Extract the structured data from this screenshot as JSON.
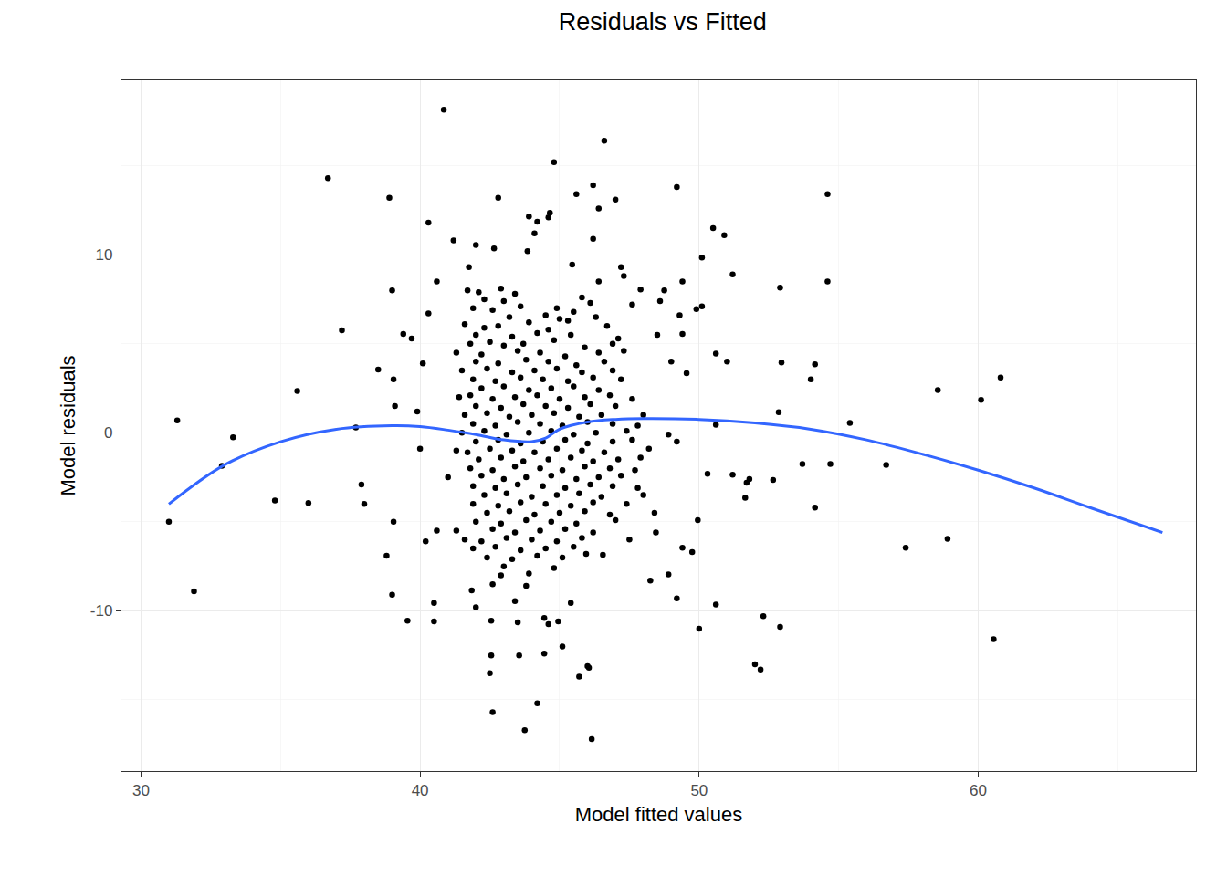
{
  "chart_data": {
    "type": "scatter",
    "title": "Residuals vs Fitted",
    "x_label": "Model fitted values",
    "y_label": "Model residuals",
    "xlim": [
      29.3,
      67.8
    ],
    "ylim": [
      -19.0,
      19.8
    ],
    "xticks": [
      30,
      40,
      50,
      60
    ],
    "yticks": [
      -10,
      0,
      10
    ],
    "grid": true,
    "series": [
      {
        "type": "scatter",
        "marker": "circle",
        "color": "#000000",
        "x": [
          40.85,
          46.6,
          44.8,
          36.7,
          38.9,
          42.8,
          45.6,
          46.2,
          47.0,
          49.2,
          54.6,
          46.4,
          40.3,
          41.2,
          50.5,
          50.9,
          50.1,
          51.2,
          54.6,
          52.9,
          37.2,
          39.0,
          40.6,
          40.3,
          35.6,
          31.3,
          33.3,
          32.9,
          31.0,
          31.9,
          34.8,
          36.0,
          37.7,
          37.9,
          38.0,
          38.5,
          39.05,
          39.1,
          38.8,
          39.05,
          39.0,
          39.55,
          40.5,
          40.5,
          39.4,
          39.7,
          39.9,
          40.1,
          40.0,
          40.2,
          40.6,
          58.55,
          60.1,
          60.8,
          60.55,
          58.9,
          57.4,
          56.7,
          55.4,
          54.7,
          53.7,
          54.15,
          54.0,
          54.15,
          52.85,
          52.95,
          52.65,
          52.9,
          52.3,
          52.0,
          52.2,
          50.6,
          50.0,
          51.7,
          51.65,
          51.8,
          51.2,
          50.3,
          50.6,
          50.6,
          51.0,
          49.95,
          49.75,
          49.4,
          49.2,
          48.9,
          48.25,
          48.45,
          49.55,
          49.0,
          49.9,
          50.1,
          49.4,
          48.6,
          48.75,
          48.5,
          49.3,
          49.4,
          46.2,
          44.6,
          43.9,
          44.2,
          44.65,
          42.0,
          42.65,
          41.75,
          44.1,
          43.85,
          47.2,
          47.3,
          46.4,
          47.9,
          45.45,
          42.6,
          43.75,
          44.2,
          46.15,
          42.5,
          42.55,
          43.55,
          44.45,
          45.1,
          46.0,
          45.7,
          46.05,
          42.55,
          43.5,
          43.4,
          43.8,
          42.6,
          41.85,
          42.0,
          44.45,
          44.6,
          45.4,
          44.95,
          45.95,
          46.55,
          41.7,
          42.1,
          42.9,
          43.4,
          42.3,
          43.0,
          45.8,
          46.1,
          41.9,
          42.6,
          43.6,
          44.9,
          45.5,
          47.6,
          43.2,
          44.5,
          45.0,
          45.3,
          46.3,
          41.6,
          42.3,
          42.8,
          43.9,
          44.6,
          46.7,
          42.0,
          43.3,
          44.2,
          45.4,
          47.1,
          41.8,
          42.5,
          43.0,
          43.7,
          44.8,
          45.9,
          46.9,
          41.3,
          42.2,
          43.5,
          44.3,
          45.2,
          46.4,
          47.3,
          42.0,
          42.8,
          43.8,
          44.6,
          45.6,
          46.6,
          41.5,
          42.4,
          43.3,
          44.1,
          44.9,
          45.8,
          46.9,
          41.9,
          42.7,
          43.6,
          44.4,
          45.3,
          46.2,
          47.2,
          42.2,
          43.0,
          43.9,
          44.7,
          45.5,
          46.4,
          41.4,
          41.8,
          42.6,
          43.4,
          44.2,
          45.0,
          45.9,
          46.8,
          47.6,
          42.0,
          42.9,
          43.7,
          44.5,
          45.3,
          46.1,
          47.0,
          41.6,
          42.4,
          43.2,
          44.0,
          44.8,
          45.7,
          46.5,
          48.0,
          41.9,
          42.7,
          43.5,
          44.3,
          45.1,
          46.0,
          46.9,
          47.8,
          41.5,
          42.3,
          43.1,
          43.9,
          44.7,
          45.5,
          46.3,
          47.4,
          48.9,
          42.0,
          42.8,
          43.6,
          44.4,
          45.2,
          46.0,
          46.9,
          47.6,
          49.2,
          41.3,
          41.7,
          42.5,
          43.3,
          44.1,
          44.9,
          45.8,
          46.6,
          48.2,
          42.1,
          42.9,
          43.7,
          44.6,
          45.4,
          46.2,
          47.1,
          47.9,
          41.8,
          42.6,
          43.4,
          44.3,
          45.1,
          45.9,
          46.8,
          47.7,
          41.0,
          42.2,
          43.0,
          43.8,
          44.7,
          45.6,
          46.4,
          47.2,
          41.9,
          42.7,
          43.5,
          44.4,
          45.2,
          46.1,
          46.9,
          47.8,
          42.3,
          43.1,
          44.0,
          44.9,
          45.7,
          46.5,
          48.0,
          41.9,
          42.8,
          43.6,
          44.5,
          45.4,
          46.2,
          47.4,
          42.4,
          43.2,
          44.1,
          45.0,
          45.9,
          46.8,
          48.4,
          42.0,
          42.9,
          43.8,
          44.7,
          45.6,
          47.0,
          41.3,
          42.6,
          43.4,
          44.3,
          45.2,
          46.2,
          41.6,
          42.2,
          43.1,
          44.0,
          44.9,
          45.8,
          47.5,
          41.9,
          42.7,
          43.6,
          44.5,
          45.5,
          42.4,
          43.3,
          44.2,
          45.1,
          43.0,
          44.8,
          42.9,
          43.9
        ],
        "values": [
          18.15,
          16.4,
          15.2,
          14.3,
          13.2,
          13.2,
          13.4,
          13.9,
          13.1,
          13.8,
          13.4,
          12.6,
          11.8,
          10.8,
          11.5,
          11.1,
          9.85,
          8.9,
          8.5,
          8.15,
          5.75,
          8.0,
          8.5,
          6.7,
          2.35,
          0.7,
          -0.25,
          -1.85,
          -5.0,
          -8.9,
          -3.8,
          -3.95,
          0.3,
          -2.9,
          -4.0,
          3.55,
          3.0,
          1.5,
          -6.9,
          -5.0,
          -9.1,
          -10.55,
          -10.6,
          -9.55,
          5.55,
          5.3,
          1.2,
          3.9,
          -0.9,
          -6.1,
          -5.5,
          2.4,
          1.85,
          3.1,
          -11.6,
          -5.95,
          -6.45,
          -1.8,
          0.55,
          -1.75,
          -1.75,
          3.85,
          3.0,
          -4.2,
          1.15,
          3.95,
          -2.65,
          -10.9,
          -10.3,
          -13.0,
          -13.3,
          -9.65,
          -11.0,
          -2.8,
          -3.65,
          -2.6,
          -2.35,
          -2.3,
          0.45,
          4.45,
          4.0,
          -4.9,
          -6.7,
          -6.45,
          -9.3,
          -7.95,
          -8.3,
          -5.6,
          3.35,
          4.0,
          6.95,
          7.1,
          8.5,
          7.4,
          8.0,
          5.5,
          6.6,
          5.55,
          10.9,
          12.1,
          12.15,
          11.85,
          12.35,
          10.55,
          10.35,
          9.3,
          11.2,
          10.2,
          9.3,
          8.8,
          8.5,
          8.05,
          9.45,
          -15.7,
          -16.7,
          -15.2,
          -17.2,
          -13.5,
          -12.5,
          -12.5,
          -12.4,
          -12.0,
          -13.1,
          -13.7,
          -13.2,
          -10.55,
          -10.65,
          -9.45,
          -8.6,
          -8.5,
          -8.85,
          -9.8,
          -10.4,
          -10.75,
          -9.55,
          -10.6,
          -6.8,
          -6.85,
          8.0,
          7.9,
          8.1,
          7.8,
          7.5,
          7.4,
          7.6,
          7.3,
          7.0,
          6.9,
          7.1,
          7.0,
          6.8,
          7.2,
          6.5,
          6.6,
          6.4,
          6.3,
          6.5,
          6.1,
          5.9,
          6.0,
          6.2,
          5.8,
          6.0,
          5.5,
          5.4,
          5.6,
          5.5,
          5.3,
          5.0,
          5.1,
          4.9,
          5.0,
          5.2,
          4.8,
          5.0,
          4.5,
          4.4,
          4.6,
          4.5,
          4.3,
          4.5,
          4.6,
          4.0,
          3.9,
          4.1,
          4.0,
          3.8,
          4.0,
          3.5,
          3.6,
          3.4,
          3.5,
          3.6,
          3.4,
          3.5,
          3.0,
          2.9,
          3.1,
          3.0,
          2.9,
          3.1,
          3.0,
          2.5,
          2.6,
          2.4,
          2.5,
          2.6,
          2.4,
          2.0,
          2.1,
          1.9,
          2.0,
          2.1,
          1.9,
          2.0,
          2.1,
          1.9,
          1.5,
          1.4,
          1.6,
          1.5,
          1.4,
          1.6,
          1.5,
          1.0,
          1.1,
          0.9,
          1.0,
          1.1,
          0.9,
          1.0,
          1.0,
          0.5,
          0.4,
          0.6,
          0.5,
          0.4,
          0.6,
          0.5,
          0.4,
          0.0,
          0.1,
          -0.1,
          0.0,
          0.1,
          -0.1,
          0.0,
          0.1,
          -0.1,
          -0.5,
          -0.4,
          -0.6,
          -0.5,
          -0.4,
          -0.6,
          -0.5,
          -0.4,
          -0.5,
          -1.0,
          -1.1,
          -0.9,
          -1.0,
          -1.1,
          -0.9,
          -1.0,
          -1.1,
          -0.9,
          -1.5,
          -1.4,
          -1.6,
          -1.5,
          -1.4,
          -1.6,
          -1.5,
          -1.4,
          -2.0,
          -2.1,
          -1.9,
          -2.0,
          -2.1,
          -1.9,
          -2.0,
          -2.1,
          -2.5,
          -2.4,
          -2.6,
          -2.5,
          -2.4,
          -2.6,
          -2.5,
          -2.4,
          -3.0,
          -3.1,
          -2.9,
          -3.0,
          -3.1,
          -2.9,
          -3.0,
          -3.1,
          -3.5,
          -3.4,
          -3.6,
          -3.5,
          -3.4,
          -3.6,
          -3.5,
          -4.0,
          -4.1,
          -3.9,
          -4.0,
          -4.1,
          -3.9,
          -4.0,
          -4.5,
          -4.4,
          -4.6,
          -4.5,
          -4.4,
          -4.6,
          -4.5,
          -5.0,
          -5.1,
          -4.9,
          -5.0,
          -5.1,
          -4.9,
          -5.5,
          -5.4,
          -5.6,
          -5.5,
          -5.4,
          -5.6,
          -6.0,
          -6.1,
          -5.9,
          -6.0,
          -6.1,
          -5.9,
          -6.0,
          -6.5,
          -6.4,
          -6.6,
          -6.5,
          -6.4,
          -7.0,
          -7.1,
          -6.9,
          -7.0,
          -7.5,
          -7.6,
          -8.0,
          -7.9
        ]
      },
      {
        "type": "line",
        "line_style": "solid",
        "color": "#3366FF",
        "x": [
          31,
          33,
          35,
          37,
          39,
          40,
          41,
          42,
          43,
          44,
          44.5,
          45,
          46,
          47,
          48,
          50,
          52,
          54,
          56,
          58,
          60,
          62,
          64,
          66.6
        ],
        "values": [
          -4.0,
          -1.8,
          -0.5,
          0.2,
          0.4,
          0.35,
          0.15,
          -0.1,
          -0.4,
          -0.5,
          -0.3,
          0.2,
          0.6,
          0.75,
          0.8,
          0.75,
          0.55,
          0.2,
          -0.4,
          -1.2,
          -2.1,
          -3.1,
          -4.2,
          -5.6
        ]
      }
    ]
  }
}
